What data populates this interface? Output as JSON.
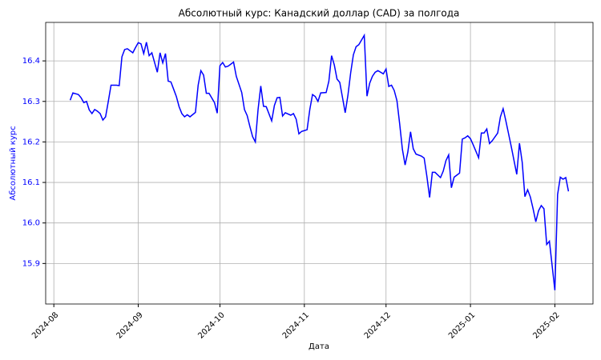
{
  "chart_data": {
    "type": "line",
    "title": "Абсолютный курс: Канадский доллар (CAD) за полгода",
    "xlabel": "Дата",
    "ylabel": "Абсолютный курс",
    "x": [
      6,
      7,
      9,
      10,
      11,
      12,
      13,
      14,
      15,
      16,
      17,
      18,
      19,
      20,
      21,
      23,
      24,
      25,
      26,
      27,
      29,
      30,
      31,
      32,
      33,
      34,
      35,
      36,
      37,
      38,
      39,
      40,
      41,
      42,
      43,
      44,
      45,
      46,
      47,
      48,
      49,
      50,
      52,
      53,
      54,
      55,
      56,
      57,
      59,
      60,
      61,
      62,
      63,
      64,
      66,
      67,
      69,
      70,
      71,
      72,
      73,
      74,
      75,
      76,
      77,
      78,
      80,
      81,
      82,
      83,
      84,
      85,
      87,
      88,
      89,
      90,
      91,
      93,
      94,
      95,
      96,
      97,
      98,
      100,
      101,
      102,
      103,
      104,
      105,
      106,
      107,
      108,
      109,
      110,
      111,
      112,
      114,
      115,
      116,
      117,
      118,
      119,
      121,
      122,
      123,
      124,
      125,
      126,
      127,
      128,
      129,
      130,
      131,
      132,
      133,
      135,
      136,
      137,
      138,
      139,
      140,
      142,
      143,
      144,
      145,
      146,
      147,
      149,
      150,
      151,
      152,
      153,
      154,
      156,
      157,
      158,
      159,
      160,
      161,
      163,
      164,
      165,
      166,
      167,
      168,
      170,
      171,
      172,
      173,
      174,
      175,
      176,
      177,
      178,
      179,
      180,
      181,
      182,
      184,
      185,
      186,
      187,
      188,
      189
    ],
    "series": [
      {
        "name": "Абсолютный курс",
        "color": "#0000ff",
        "values": [
          16.303,
          16.321,
          16.317,
          16.309,
          16.297,
          16.3,
          16.279,
          16.27,
          16.28,
          16.276,
          16.27,
          16.254,
          16.262,
          16.3,
          16.34,
          16.34,
          16.339,
          16.41,
          16.428,
          16.43,
          16.42,
          16.433,
          16.445,
          16.442,
          16.418,
          16.446,
          16.413,
          16.42,
          16.396,
          16.372,
          16.42,
          16.395,
          16.418,
          16.35,
          16.348,
          16.33,
          16.312,
          16.287,
          16.27,
          16.262,
          16.267,
          16.262,
          16.273,
          16.34,
          16.376,
          16.365,
          16.32,
          16.32,
          16.297,
          16.271,
          16.388,
          16.396,
          16.385,
          16.387,
          16.397,
          16.362,
          16.322,
          16.28,
          16.265,
          16.238,
          16.213,
          16.2,
          16.28,
          16.338,
          16.288,
          16.287,
          16.252,
          16.29,
          16.309,
          16.31,
          16.264,
          16.272,
          16.266,
          16.27,
          16.256,
          16.22,
          16.226,
          16.23,
          16.28,
          16.317,
          16.312,
          16.3,
          16.321,
          16.322,
          16.35,
          16.413,
          16.39,
          16.355,
          16.347,
          16.31,
          16.272,
          16.315,
          16.37,
          16.415,
          16.435,
          16.44,
          16.463,
          16.313,
          16.345,
          16.362,
          16.372,
          16.376,
          16.368,
          16.38,
          16.337,
          16.34,
          16.327,
          16.302,
          16.245,
          16.182,
          16.143,
          16.175,
          16.225,
          16.183,
          16.17,
          16.165,
          16.16,
          16.115,
          16.063,
          16.125,
          16.125,
          16.112,
          16.128,
          16.154,
          16.168,
          16.087,
          16.113,
          16.123,
          16.207,
          16.21,
          16.215,
          16.208,
          16.193,
          16.161,
          16.222,
          16.222,
          16.232,
          16.196,
          16.203,
          16.222,
          16.262,
          16.282,
          16.252,
          16.22,
          16.188,
          16.12,
          16.197,
          16.15,
          16.065,
          16.082,
          16.064,
          16.035,
          16.003,
          16.03,
          16.043,
          16.035,
          15.947,
          15.955,
          15.834,
          16.07,
          16.113,
          16.108,
          16.112,
          16.078
        ]
      }
    ],
    "xlim": [
      -3,
      198
    ],
    "xticks": [
      {
        "value": 0,
        "label": "2024-08"
      },
      {
        "value": 31,
        "label": "2024-09"
      },
      {
        "value": 61,
        "label": "2024-10"
      },
      {
        "value": 92,
        "label": "2024-11"
      },
      {
        "value": 122,
        "label": "2024-12"
      },
      {
        "value": 153,
        "label": "2025-01"
      },
      {
        "value": 184,
        "label": "2025-02"
      }
    ],
    "ylim": [
      15.8,
      16.495
    ],
    "yticks": [
      15.9,
      {
        "value": 16,
        "label": "16.0"
      },
      16.1,
      16.2,
      16.3,
      16.4
    ],
    "grid": true
  }
}
